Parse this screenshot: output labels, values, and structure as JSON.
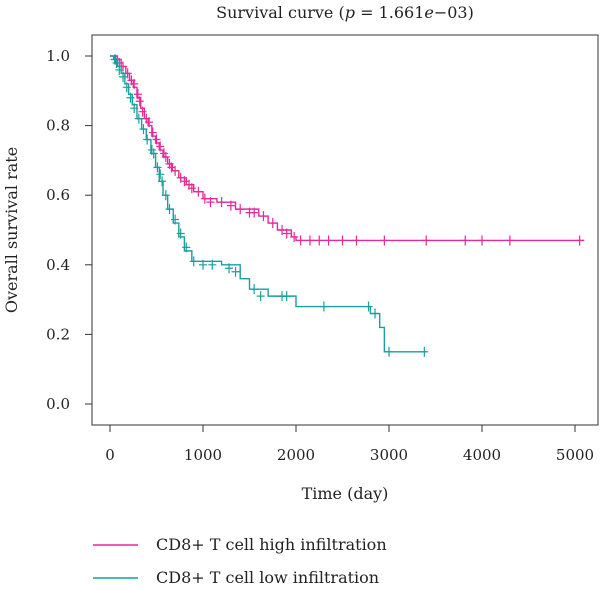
{
  "chart_data": {
    "type": "line",
    "title_prefix": "Survival curve (",
    "title_p": "p",
    "title_value": " = 1.661",
    "title_e": "e",
    "title_exp": "−03)",
    "xlabel": "Time (day)",
    "ylabel": "Overall survival rate",
    "xlim": [
      0,
      5100
    ],
    "ylim": [
      0,
      1.0
    ],
    "x_ticks": [
      0,
      1000,
      2000,
      3000,
      4000,
      5000
    ],
    "x_tick_labels": [
      "0",
      "1000",
      "2000",
      "3000",
      "4000",
      "5000"
    ],
    "y_ticks": [
      0,
      0.2,
      0.4,
      0.6,
      0.8,
      1.0
    ],
    "y_tick_labels": [
      "0.0",
      "0.2",
      "0.4",
      "0.6",
      "0.8",
      "1.0"
    ],
    "legend_position": "bottom-left",
    "series": [
      {
        "name": "CD8+ T cell high infiltration",
        "color": "#e7299a",
        "steps": [
          [
            0,
            1.0
          ],
          [
            80,
            0.99
          ],
          [
            120,
            0.97
          ],
          [
            170,
            0.95
          ],
          [
            210,
            0.93
          ],
          [
            250,
            0.91
          ],
          [
            290,
            0.88
          ],
          [
            330,
            0.85
          ],
          [
            370,
            0.82
          ],
          [
            410,
            0.8
          ],
          [
            450,
            0.77
          ],
          [
            490,
            0.75
          ],
          [
            530,
            0.73
          ],
          [
            570,
            0.71
          ],
          [
            620,
            0.69
          ],
          [
            670,
            0.67
          ],
          [
            740,
            0.65
          ],
          [
            820,
            0.63
          ],
          [
            900,
            0.61
          ],
          [
            1000,
            0.59
          ],
          [
            1150,
            0.58
          ],
          [
            1350,
            0.56
          ],
          [
            1600,
            0.54
          ],
          [
            1700,
            0.52
          ],
          [
            1800,
            0.5
          ],
          [
            1950,
            0.48
          ],
          [
            2000,
            0.47
          ],
          [
            5100,
            0.47
          ]
        ],
        "censors": [
          [
            60,
            0.99
          ],
          [
            100,
            0.98
          ],
          [
            140,
            0.97
          ],
          [
            190,
            0.95
          ],
          [
            230,
            0.93
          ],
          [
            260,
            0.92
          ],
          [
            300,
            0.89
          ],
          [
            320,
            0.87
          ],
          [
            350,
            0.84
          ],
          [
            390,
            0.82
          ],
          [
            420,
            0.81
          ],
          [
            460,
            0.78
          ],
          [
            500,
            0.76
          ],
          [
            540,
            0.74
          ],
          [
            580,
            0.72
          ],
          [
            600,
            0.71
          ],
          [
            640,
            0.69
          ],
          [
            660,
            0.68
          ],
          [
            700,
            0.67
          ],
          [
            760,
            0.65
          ],
          [
            800,
            0.64
          ],
          [
            850,
            0.63
          ],
          [
            880,
            0.62
          ],
          [
            950,
            0.61
          ],
          [
            1020,
            0.59
          ],
          [
            1080,
            0.58
          ],
          [
            1200,
            0.58
          ],
          [
            1300,
            0.57
          ],
          [
            1400,
            0.56
          ],
          [
            1500,
            0.55
          ],
          [
            1550,
            0.55
          ],
          [
            1650,
            0.54
          ],
          [
            1750,
            0.52
          ],
          [
            1850,
            0.5
          ],
          [
            1900,
            0.49
          ],
          [
            1980,
            0.48
          ],
          [
            2050,
            0.47
          ],
          [
            2150,
            0.47
          ],
          [
            2250,
            0.47
          ],
          [
            2350,
            0.47
          ],
          [
            2500,
            0.47
          ],
          [
            2650,
            0.47
          ],
          [
            2950,
            0.47
          ],
          [
            3400,
            0.47
          ],
          [
            3820,
            0.47
          ],
          [
            4000,
            0.47
          ],
          [
            4300,
            0.47
          ],
          [
            5050,
            0.47
          ]
        ]
      },
      {
        "name": "CD8+ T cell low infiltration",
        "color": "#1b9e9e",
        "steps": [
          [
            0,
            1.0
          ],
          [
            40,
            0.99
          ],
          [
            80,
            0.97
          ],
          [
            120,
            0.95
          ],
          [
            160,
            0.92
          ],
          [
            200,
            0.89
          ],
          [
            240,
            0.86
          ],
          [
            290,
            0.82
          ],
          [
            340,
            0.79
          ],
          [
            390,
            0.76
          ],
          [
            440,
            0.72
          ],
          [
            490,
            0.68
          ],
          [
            530,
            0.64
          ],
          [
            570,
            0.6
          ],
          [
            620,
            0.56
          ],
          [
            680,
            0.52
          ],
          [
            740,
            0.48
          ],
          [
            800,
            0.44
          ],
          [
            880,
            0.41
          ],
          [
            1200,
            0.4
          ],
          [
            1400,
            0.36
          ],
          [
            1500,
            0.33
          ],
          [
            1700,
            0.31
          ],
          [
            2000,
            0.28
          ],
          [
            2800,
            0.26
          ],
          [
            2900,
            0.22
          ],
          [
            2950,
            0.15
          ],
          [
            3400,
            0.15
          ]
        ],
        "censors": [
          [
            50,
            0.99
          ],
          [
            70,
            0.98
          ],
          [
            100,
            0.96
          ],
          [
            140,
            0.94
          ],
          [
            180,
            0.91
          ],
          [
            220,
            0.88
          ],
          [
            260,
            0.85
          ],
          [
            310,
            0.82
          ],
          [
            360,
            0.79
          ],
          [
            400,
            0.76
          ],
          [
            450,
            0.73
          ],
          [
            470,
            0.72
          ],
          [
            510,
            0.68
          ],
          [
            540,
            0.66
          ],
          [
            560,
            0.64
          ],
          [
            600,
            0.6
          ],
          [
            640,
            0.56
          ],
          [
            700,
            0.53
          ],
          [
            760,
            0.49
          ],
          [
            820,
            0.45
          ],
          [
            900,
            0.41
          ],
          [
            1000,
            0.4
          ],
          [
            1100,
            0.4
          ],
          [
            1280,
            0.39
          ],
          [
            1350,
            0.38
          ],
          [
            1550,
            0.33
          ],
          [
            1620,
            0.31
          ],
          [
            1850,
            0.31
          ],
          [
            1900,
            0.31
          ],
          [
            2300,
            0.28
          ],
          [
            2780,
            0.28
          ],
          [
            2850,
            0.26
          ],
          [
            3000,
            0.15
          ],
          [
            3380,
            0.15
          ]
        ]
      }
    ]
  }
}
